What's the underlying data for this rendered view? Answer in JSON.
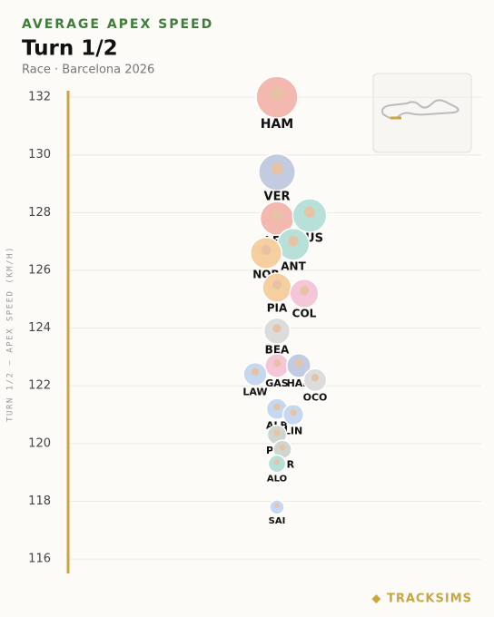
{
  "chart_data": {
    "type": "scatter",
    "kicker": "AVERAGE APEX SPEED",
    "title": "Turn 1/2",
    "subtitle": "Race · Barcelona 2026",
    "y_label": "TURN 1/2 — APEX SPEED (KM/H)",
    "brand": "◆ TRACKSIMS",
    "categories": [
      "HAM",
      "VER",
      "LEC",
      "RUS",
      "ANT",
      "NOR",
      "PIA",
      "COL",
      "BEA",
      "GAS",
      "HAD",
      "LAW",
      "OCO",
      "ALB",
      "LIN",
      "PER",
      "BOR",
      "ALO",
      "SAI"
    ],
    "values": [
      132.0,
      129.4,
      127.8,
      127.9,
      126.9,
      126.6,
      125.4,
      125.2,
      123.9,
      122.7,
      122.7,
      122.4,
      122.2,
      121.2,
      121.0,
      120.3,
      119.8,
      119.3,
      117.8
    ],
    "colors": [
      "#f3b8b0",
      "#c3cbe0",
      "#f3b8b0",
      "#b6e0d8",
      "#b6e0d8",
      "#f6cfa0",
      "#f6cfa0",
      "#f5c6d8",
      "#dcdcdc",
      "#f5c6d8",
      "#c3cbe0",
      "#c6d8f0",
      "#dcdcdc",
      "#c6d8f0",
      "#c6d8f0",
      "#cfd5cf",
      "#cfd5cf",
      "#b6e0d8",
      "#c6d8f0"
    ],
    "ylim": [
      115.5,
      132.6
    ],
    "yticks": [
      116,
      118,
      120,
      122,
      124,
      126,
      128,
      130,
      132
    ],
    "grid": true,
    "axis_color": "#c9a642"
  }
}
